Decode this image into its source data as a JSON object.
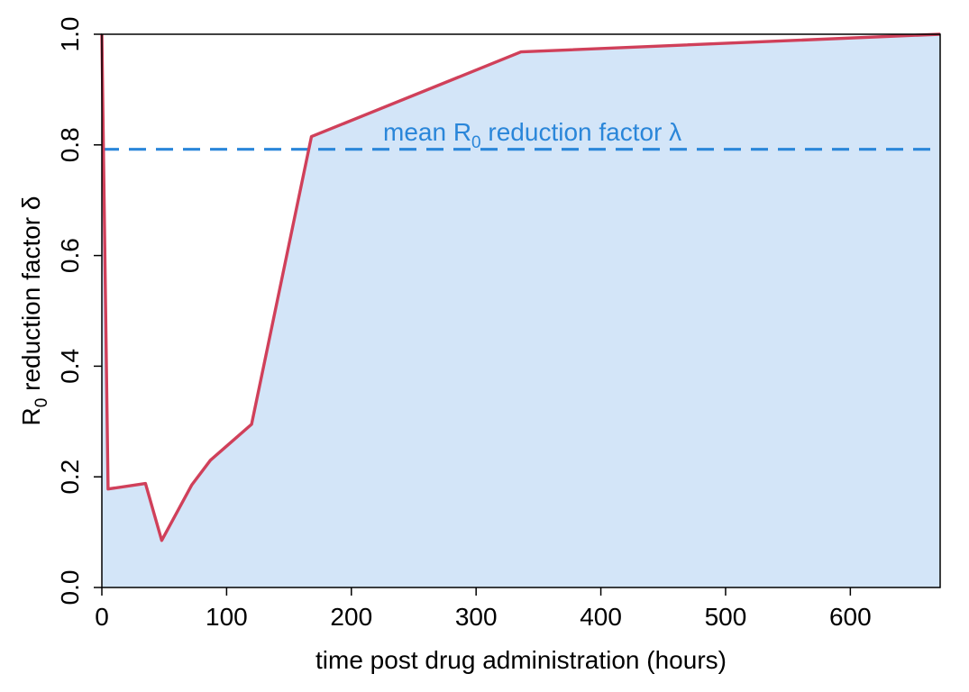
{
  "chart_data": {
    "type": "line",
    "x": [
      0,
      5,
      35,
      48,
      72,
      87,
      120,
      168,
      336,
      672
    ],
    "series": [
      {
        "values": [
          1.0,
          0.178,
          0.188,
          0.085,
          0.185,
          0.23,
          0.295,
          0.815,
          0.968,
          1.0
        ],
        "color": "#d0405a"
      }
    ],
    "area_fill_color": "#d3e5f8",
    "reference_line": {
      "y": 0.792,
      "label_prefix": "mean R",
      "label_subscript": "0",
      "label_suffix": " reduction factor λ",
      "color": "#2a86d9",
      "style": "dashed"
    },
    "xlabel": "time post drug administration (hours)",
    "ylabel_prefix": "R",
    "ylabel_subscript": "0",
    "ylabel_suffix": " reduction factor δ",
    "xlim": [
      0,
      672
    ],
    "ylim": [
      0.0,
      1.0
    ],
    "xticks": [
      0,
      100,
      200,
      300,
      400,
      500,
      600
    ],
    "xtick_labels": [
      "0",
      "100",
      "200",
      "300",
      "400",
      "500",
      "600"
    ],
    "yticks": [
      0.0,
      0.2,
      0.4,
      0.6,
      0.8,
      1.0
    ],
    "ytick_labels": [
      "0.0",
      "0.2",
      "0.4",
      "0.6",
      "0.8",
      "1.0"
    ],
    "grid": false,
    "legend": "none"
  }
}
